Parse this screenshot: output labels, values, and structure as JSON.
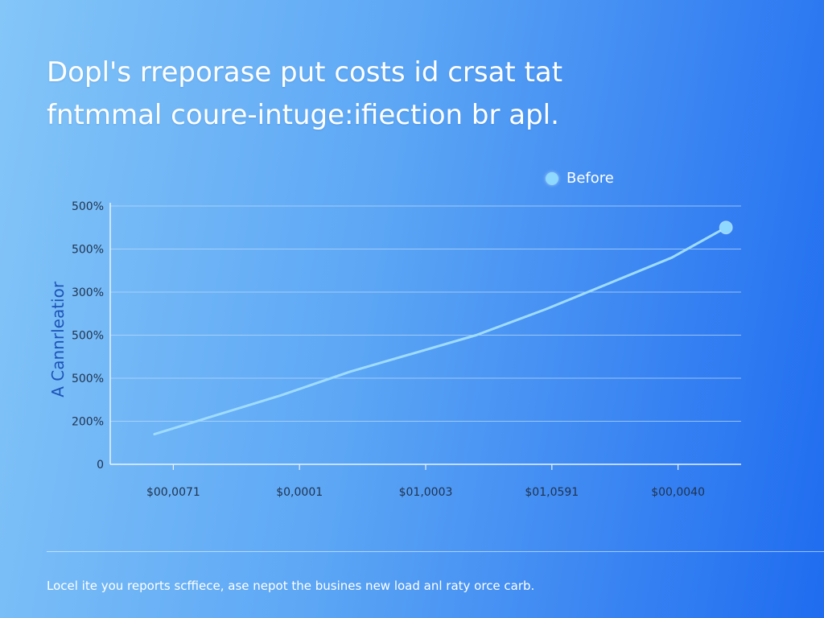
{
  "header": {
    "title_line1": "Dopl's rreporase put costs id crsat tat",
    "title_line2": "fntmmal coure-intuge:ifiection br apl."
  },
  "footer": {
    "text": "Locel ite you reports scffiece, ase nepot the busines new load anl raty orce carb."
  },
  "colors": {
    "line": "#9fdcff",
    "marker": "#8fd8ff",
    "grid": "#b9d8fb",
    "axis": "#e8f3ff"
  },
  "chart_data": {
    "type": "line",
    "title": "",
    "xlabel": "",
    "ylabel": "A Cannrleatior",
    "legend": {
      "position": "top-right",
      "entries": [
        "Before"
      ]
    },
    "grid": true,
    "ylim": [
      0,
      5
    ],
    "y_ticks": [
      {
        "value": 0,
        "label": "0"
      },
      {
        "value": 1,
        "label": "200%"
      },
      {
        "value": 2,
        "label": "500%"
      },
      {
        "value": 3,
        "label": "500%"
      },
      {
        "value": 4,
        "label": "300%"
      },
      {
        "value": 5,
        "label": "500%"
      },
      {
        "value": 6,
        "label": "500%"
      }
    ],
    "x_ticks": [
      {
        "value": 0.5,
        "label": "$00,0071"
      },
      {
        "value": 1.5,
        "label": "$0,0001"
      },
      {
        "value": 2.5,
        "label": "$01,0003"
      },
      {
        "value": 3.5,
        "label": "$01,0591"
      },
      {
        "value": 4.5,
        "label": "$00,0040"
      }
    ],
    "xlim": [
      0,
      5
    ],
    "series": [
      {
        "name": "Before",
        "x": [
          0.35,
          1.35,
          1.9,
          2.9,
          3.45,
          4.45,
          4.88
        ],
        "y": [
          0.7,
          1.6,
          2.15,
          3.0,
          3.6,
          4.8,
          5.5
        ]
      }
    ]
  }
}
